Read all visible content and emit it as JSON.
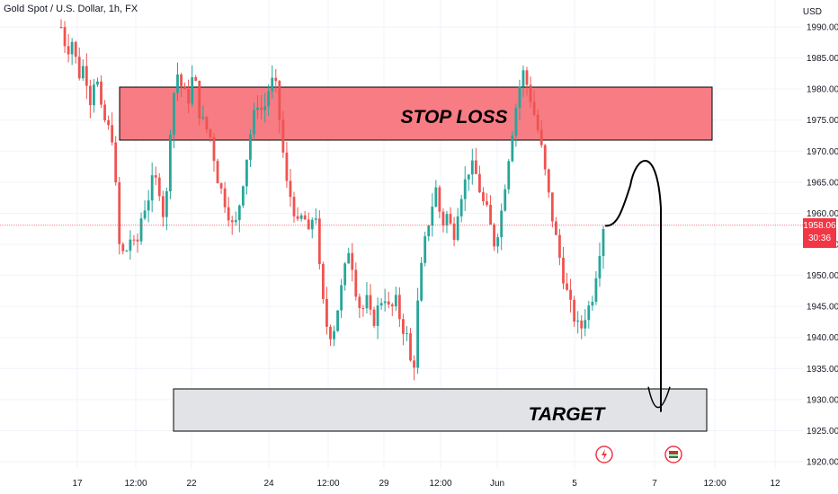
{
  "header": {
    "symbol_title": "Gold Spot / U.S. Dollar, 1h, FX",
    "currency": "USD"
  },
  "price_badge": {
    "price": "1958.06",
    "countdown": "30:36"
  },
  "zones": {
    "stop_loss_label": "STOP LOSS",
    "target_label": "TARGET"
  },
  "colors": {
    "up": "#26a69a",
    "down": "#ef5350",
    "stop_zone": "#f77c84",
    "target_zone": "#e1e3e6",
    "price_line": "#f23645"
  },
  "icons": [
    "lightning-icon",
    "flag-icon"
  ],
  "chart_data": {
    "type": "candlestick",
    "title": "Gold Spot / U.S. Dollar, 1h, FX",
    "ylabel": "USD",
    "ylim": [
      1918,
      1993
    ],
    "y_ticks": [
      1920.0,
      1925.0,
      1930.0,
      1935.0,
      1940.0,
      1945.0,
      1950.0,
      1955.0,
      1960.0,
      1965.0,
      1970.0,
      1975.0,
      1980.0,
      1985.0,
      1990.0
    ],
    "x_tick_labels": [
      "17",
      "12:00",
      "22",
      "24",
      "12:00",
      "29",
      "12:00",
      "Jun",
      "5",
      "7",
      "12:00",
      "12"
    ],
    "last_price": 1958.06,
    "stop_loss_zone": [
      1972.0,
      1980.5
    ],
    "target_zone": [
      1924.5,
      1931.5
    ],
    "projection": {
      "start": 1958.0,
      "peak": 1969.5,
      "end": 1928.0
    },
    "ohlc_path": [
      1990,
      1986,
      1988,
      1982,
      1984,
      1978,
      1983,
      1976,
      1974,
      1972,
      1955,
      1953,
      1956,
      1954,
      1960,
      1962,
      1966,
      1964,
      1958,
      1975,
      1983,
      1980,
      1978,
      1983,
      1976,
      1974,
      1972,
      1966,
      1963,
      1960,
      1957,
      1962,
      1968,
      1974,
      1978,
      1976,
      1980,
      1982,
      1974,
      1965,
      1962,
      1958,
      1960,
      1956,
      1962,
      1948,
      1942,
      1940,
      1945,
      1950,
      1955,
      1948,
      1944,
      1946,
      1942,
      1945,
      1947,
      1944,
      1946,
      1942,
      1940,
      1933,
      1948,
      1955,
      1960,
      1964,
      1958,
      1960,
      1956,
      1962,
      1965,
      1968,
      1966,
      1962,
      1960,
      1955,
      1958,
      1965,
      1972,
      1978,
      1983,
      1980,
      1976,
      1972,
      1966,
      1960,
      1955,
      1950,
      1946,
      1943,
      1941,
      1944,
      1946,
      1952,
      1958
    ]
  }
}
